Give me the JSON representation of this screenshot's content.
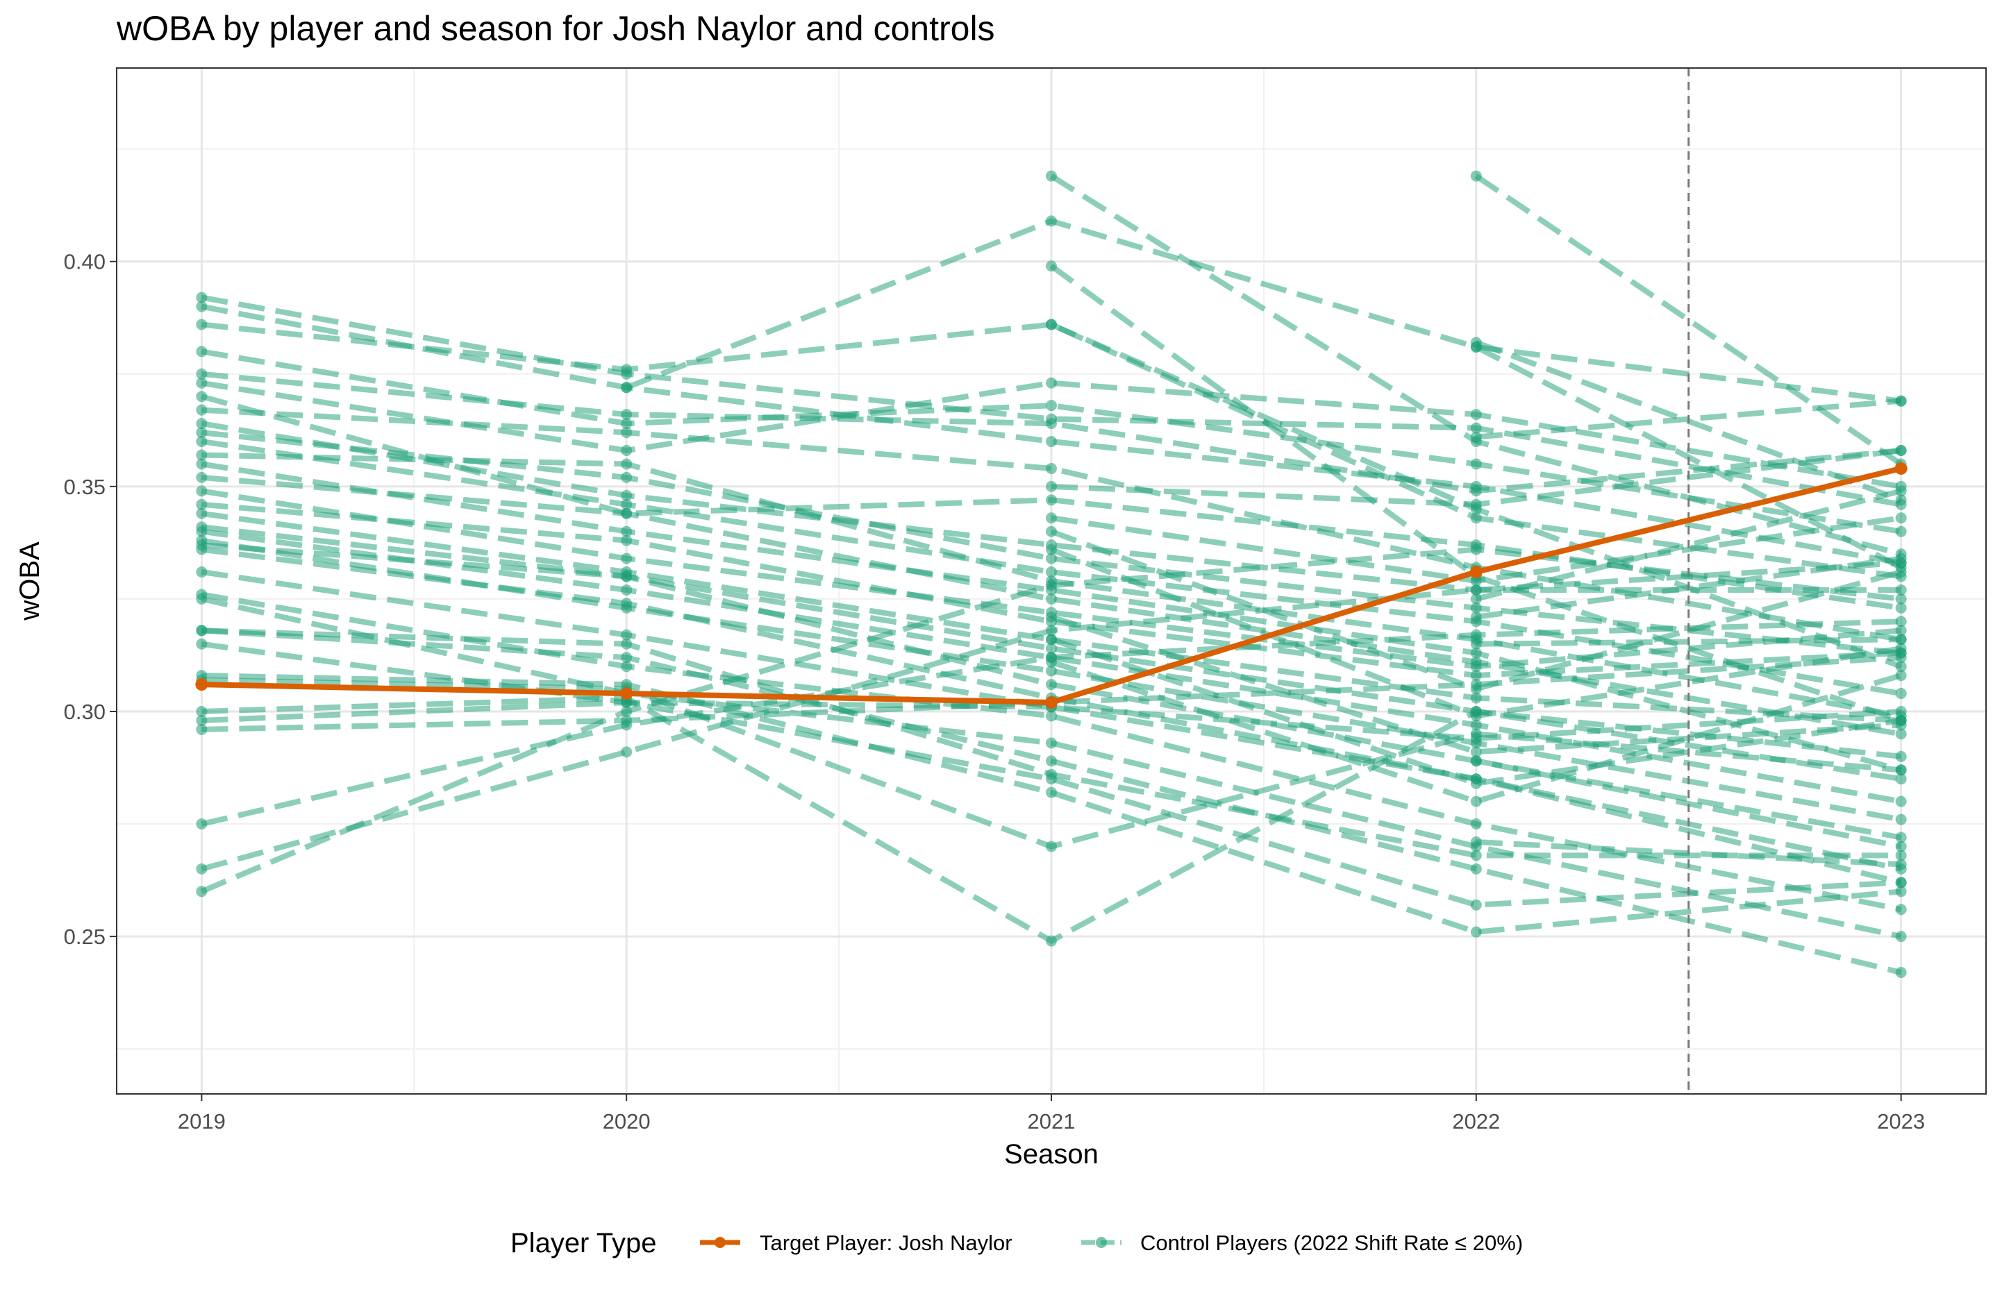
{
  "chart_data": {
    "type": "line",
    "title": "wOBA by player and season for Josh Naylor and controls",
    "xlabel": "Season",
    "ylabel": "wOBA",
    "x_ticks": [
      "2019",
      "2020",
      "2021",
      "2022",
      "2023"
    ],
    "y_ticks": [
      "0.25",
      "0.30",
      "0.35",
      "0.40"
    ],
    "xlim": [
      2018.8,
      2023.2
    ],
    "ylim": [
      0.215,
      0.443
    ],
    "reference_line": {
      "x": 2022.5,
      "style": "dashed",
      "color": "#7a7a7a"
    },
    "grid": true,
    "legend": {
      "title": "Player Type",
      "placement": "bottom",
      "items": [
        {
          "label": "Target Player: Josh Naylor",
          "color": "#d95f02"
        },
        {
          "label": "Control Players (2022 Shift Rate ≤ 20%)",
          "color": "#1b9e77"
        }
      ]
    },
    "series": [
      {
        "name": "Target Player: Josh Naylor",
        "color": "#d95f02",
        "points": [
          [
            2019,
            0.306
          ],
          [
            2020,
            0.304
          ],
          [
            2021,
            0.302
          ],
          [
            2022,
            0.331
          ],
          [
            2023,
            0.354
          ]
        ]
      }
    ],
    "control_series": [
      [
        [
          2021,
          0.419
        ],
        [
          2022,
          0.36
        ],
        [
          2023,
          0.335
        ]
      ],
      [
        [
          2021,
          0.399
        ],
        [
          2022,
          0.33
        ],
        [
          2023,
          0.298
        ]
      ],
      [
        [
          2021,
          0.386
        ],
        [
          2022,
          0.345
        ],
        [
          2023,
          0.31
        ]
      ],
      [
        [
          2022,
          0.419
        ],
        [
          2023,
          0.355
        ]
      ],
      [
        [
          2022,
          0.381
        ],
        [
          2023,
          0.332
        ]
      ],
      [
        [
          2022,
          0.382
        ],
        [
          2023,
          0.347
        ]
      ],
      [
        [
          2019,
          0.392
        ],
        [
          2020,
          0.375
        ],
        [
          2021,
          0.365
        ],
        [
          2022,
          0.363
        ],
        [
          2023,
          0.346
        ]
      ],
      [
        [
          2019,
          0.39
        ],
        [
          2020,
          0.372
        ],
        [
          2021,
          0.36
        ],
        [
          2022,
          0.35
        ],
        [
          2023,
          0.333
        ]
      ],
      [
        [
          2019,
          0.386
        ],
        [
          2020,
          0.376
        ],
        [
          2021,
          0.386
        ],
        [
          2022,
          0.343
        ],
        [
          2023,
          0.33
        ]
      ],
      [
        [
          2019,
          0.38
        ],
        [
          2020,
          0.364
        ],
        [
          2021,
          0.368
        ],
        [
          2022,
          0.355
        ],
        [
          2023,
          0.34
        ]
      ],
      [
        [
          2019,
          0.375
        ],
        [
          2020,
          0.366
        ],
        [
          2021,
          0.364
        ],
        [
          2022,
          0.349
        ],
        [
          2023,
          0.358
        ]
      ],
      [
        [
          2019,
          0.373
        ],
        [
          2020,
          0.358
        ],
        [
          2021,
          0.373
        ],
        [
          2022,
          0.366
        ],
        [
          2023,
          0.35
        ]
      ],
      [
        [
          2019,
          0.37
        ],
        [
          2020,
          0.344
        ],
        [
          2021,
          0.347
        ],
        [
          2022,
          0.337
        ],
        [
          2023,
          0.323
        ]
      ],
      [
        [
          2019,
          0.367
        ],
        [
          2020,
          0.362
        ],
        [
          2021,
          0.354
        ],
        [
          2022,
          0.332
        ],
        [
          2023,
          0.316
        ]
      ],
      [
        [
          2019,
          0.364
        ],
        [
          2020,
          0.348
        ],
        [
          2021,
          0.337
        ],
        [
          2022,
          0.327
        ],
        [
          2023,
          0.327
        ]
      ],
      [
        [
          2019,
          0.362
        ],
        [
          2020,
          0.352
        ],
        [
          2021,
          0.334
        ],
        [
          2022,
          0.323
        ],
        [
          2023,
          0.313
        ]
      ],
      [
        [
          2019,
          0.36
        ],
        [
          2020,
          0.346
        ],
        [
          2021,
          0.331
        ],
        [
          2022,
          0.32
        ],
        [
          2023,
          0.304
        ]
      ],
      [
        [
          2019,
          0.357
        ],
        [
          2020,
          0.355
        ],
        [
          2021,
          0.329
        ],
        [
          2022,
          0.316
        ],
        [
          2023,
          0.299
        ]
      ],
      [
        [
          2019,
          0.355
        ],
        [
          2020,
          0.34
        ],
        [
          2021,
          0.327
        ],
        [
          2022,
          0.313
        ],
        [
          2023,
          0.287
        ]
      ],
      [
        [
          2019,
          0.352
        ],
        [
          2020,
          0.344
        ],
        [
          2021,
          0.325
        ],
        [
          2022,
          0.311
        ],
        [
          2023,
          0.295
        ]
      ],
      [
        [
          2019,
          0.349
        ],
        [
          2020,
          0.334
        ],
        [
          2021,
          0.322
        ],
        [
          2022,
          0.31
        ],
        [
          2023,
          0.318
        ]
      ],
      [
        [
          2019,
          0.346
        ],
        [
          2020,
          0.338
        ],
        [
          2021,
          0.32
        ],
        [
          2022,
          0.308
        ],
        [
          2023,
          0.313
        ]
      ],
      [
        [
          2019,
          0.344
        ],
        [
          2020,
          0.331
        ],
        [
          2021,
          0.316
        ],
        [
          2022,
          0.303
        ],
        [
          2023,
          0.298
        ]
      ],
      [
        [
          2019,
          0.341
        ],
        [
          2020,
          0.33
        ],
        [
          2021,
          0.314
        ],
        [
          2022,
          0.3
        ],
        [
          2023,
          0.285
        ]
      ],
      [
        [
          2019,
          0.34
        ],
        [
          2020,
          0.327
        ],
        [
          2021,
          0.312
        ],
        [
          2022,
          0.297
        ],
        [
          2023,
          0.28
        ]
      ],
      [
        [
          2019,
          0.338
        ],
        [
          2020,
          0.323
        ],
        [
          2021,
          0.309
        ],
        [
          2022,
          0.293
        ],
        [
          2023,
          0.276
        ]
      ],
      [
        [
          2019,
          0.337
        ],
        [
          2020,
          0.33
        ],
        [
          2021,
          0.306
        ],
        [
          2022,
          0.289
        ],
        [
          2023,
          0.27
        ]
      ],
      [
        [
          2019,
          0.336
        ],
        [
          2020,
          0.324
        ],
        [
          2021,
          0.303
        ],
        [
          2022,
          0.285
        ],
        [
          2023,
          0.265
        ]
      ],
      [
        [
          2019,
          0.331
        ],
        [
          2020,
          0.317
        ],
        [
          2021,
          0.301
        ],
        [
          2022,
          0.285
        ],
        [
          2023,
          0.262
        ]
      ],
      [
        [
          2019,
          0.326
        ],
        [
          2020,
          0.31
        ],
        [
          2021,
          0.299
        ],
        [
          2022,
          0.275
        ],
        [
          2023,
          0.256
        ]
      ],
      [
        [
          2019,
          0.325
        ],
        [
          2020,
          0.304
        ],
        [
          2021,
          0.293
        ],
        [
          2022,
          0.27
        ],
        [
          2023,
          0.25
        ]
      ],
      [
        [
          2019,
          0.318
        ],
        [
          2020,
          0.312
        ],
        [
          2021,
          0.289
        ],
        [
          2022,
          0.265
        ],
        [
          2023,
          0.242
        ]
      ],
      [
        [
          2019,
          0.318
        ],
        [
          2020,
          0.315
        ],
        [
          2021,
          0.286
        ],
        [
          2022,
          0.268
        ],
        [
          2023,
          0.268
        ]
      ],
      [
        [
          2019,
          0.315
        ],
        [
          2020,
          0.302
        ],
        [
          2021,
          0.285
        ],
        [
          2022,
          0.257
        ],
        [
          2023,
          0.262
        ]
      ],
      [
        [
          2019,
          0.308
        ],
        [
          2020,
          0.306
        ],
        [
          2021,
          0.282
        ],
        [
          2022,
          0.251
        ],
        [
          2023,
          0.26
        ]
      ],
      [
        [
          2019,
          0.307
        ],
        [
          2020,
          0.305
        ],
        [
          2021,
          0.27
        ],
        [
          2022,
          0.295
        ],
        [
          2023,
          0.287
        ]
      ],
      [
        [
          2019,
          0.3
        ],
        [
          2020,
          0.303
        ],
        [
          2021,
          0.249
        ],
        [
          2022,
          0.3
        ],
        [
          2023,
          0.29
        ]
      ],
      [
        [
          2019,
          0.298
        ],
        [
          2020,
          0.302
        ],
        [
          2021,
          0.301
        ],
        [
          2022,
          0.294
        ],
        [
          2023,
          0.3
        ]
      ],
      [
        [
          2019,
          0.296
        ],
        [
          2020,
          0.298
        ],
        [
          2021,
          0.302
        ],
        [
          2022,
          0.306
        ],
        [
          2023,
          0.312
        ]
      ],
      [
        [
          2019,
          0.275
        ],
        [
          2020,
          0.297
        ],
        [
          2021,
          0.312
        ],
        [
          2022,
          0.317
        ],
        [
          2023,
          0.32
        ]
      ],
      [
        [
          2019,
          0.265
        ],
        [
          2020,
          0.291
        ],
        [
          2021,
          0.318
        ],
        [
          2022,
          0.327
        ],
        [
          2023,
          0.333
        ]
      ],
      [
        [
          2019,
          0.26
        ],
        [
          2020,
          0.3
        ],
        [
          2021,
          0.328
        ],
        [
          2022,
          0.336
        ],
        [
          2023,
          0.325
        ]
      ],
      [
        [
          2020,
          0.372
        ],
        [
          2021,
          0.409
        ],
        [
          2022,
          0.381
        ],
        [
          2023,
          0.369
        ]
      ],
      [
        [
          2021,
          0.35
        ],
        [
          2022,
          0.346
        ],
        [
          2023,
          0.358
        ]
      ],
      [
        [
          2021,
          0.343
        ],
        [
          2022,
          0.329
        ],
        [
          2023,
          0.343
        ]
      ],
      [
        [
          2021,
          0.34
        ],
        [
          2022,
          0.305
        ],
        [
          2023,
          0.331
        ]
      ],
      [
        [
          2021,
          0.336
        ],
        [
          2022,
          0.299
        ],
        [
          2023,
          0.314
        ]
      ],
      [
        [
          2021,
          0.321
        ],
        [
          2022,
          0.291
        ],
        [
          2023,
          0.297
        ]
      ],
      [
        [
          2021,
          0.316
        ],
        [
          2022,
          0.284
        ],
        [
          2023,
          0.298
        ]
      ],
      [
        [
          2021,
          0.311
        ],
        [
          2022,
          0.28
        ],
        [
          2023,
          0.308
        ]
      ],
      [
        [
          2022,
          0.361
        ],
        [
          2023,
          0.369
        ]
      ],
      [
        [
          2022,
          0.325
        ],
        [
          2023,
          0.349
        ]
      ],
      [
        [
          2022,
          0.321
        ],
        [
          2023,
          0.334
        ]
      ],
      [
        [
          2022,
          0.315
        ],
        [
          2023,
          0.316
        ]
      ],
      [
        [
          2022,
          0.289
        ],
        [
          2023,
          0.272
        ]
      ],
      [
        [
          2022,
          0.271
        ],
        [
          2023,
          0.266
        ]
      ]
    ]
  }
}
